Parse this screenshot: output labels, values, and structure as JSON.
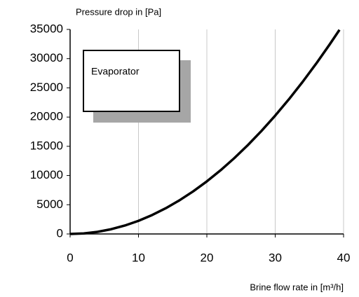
{
  "chart_data": {
    "type": "line",
    "ylabel": "Pressure drop in [Pa]",
    "xlabel": "Brine flow rate in [m³/h]",
    "annotation": "Evaporator",
    "x": [
      0,
      2,
      4,
      6,
      8,
      10,
      12,
      14,
      16,
      18,
      20,
      22,
      24,
      26,
      28,
      30,
      32,
      34,
      36,
      38,
      39.4
    ],
    "series": [
      {
        "name": "Evaporator",
        "color": "#000000",
        "values": [
          0,
          90,
          360,
          810,
          1440,
          2250,
          3240,
          4410,
          5760,
          7290,
          9000,
          10890,
          12960,
          15210,
          17640,
          20250,
          23040,
          26010,
          29160,
          32490,
          34928
        ]
      }
    ],
    "xlim": [
      0,
      40
    ],
    "xticks": [
      0,
      10,
      20,
      30,
      40
    ],
    "ylim": [
      0,
      35000
    ],
    "yticks": [
      0,
      5000,
      10000,
      15000,
      20000,
      25000,
      30000,
      35000
    ],
    "grid": true
  }
}
